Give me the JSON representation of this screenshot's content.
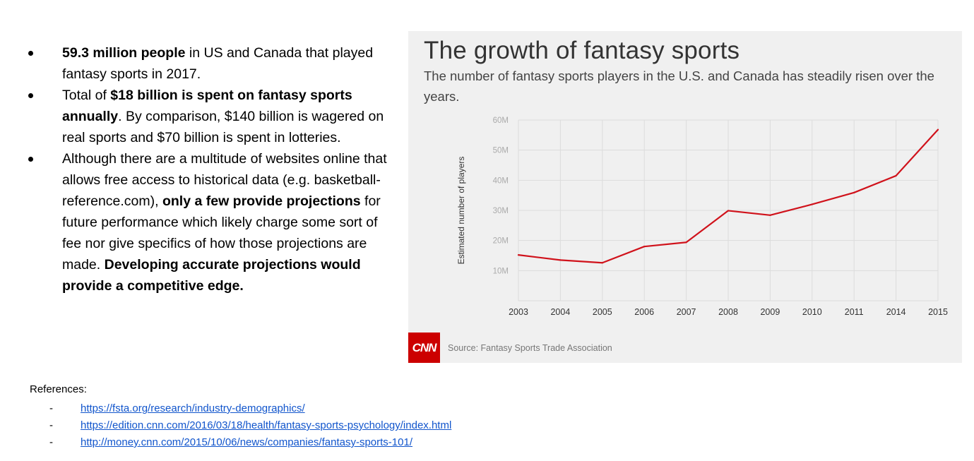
{
  "bullets": [
    {
      "segments": [
        {
          "text": "59.3 million people",
          "bold": true
        },
        {
          "text": " in US and Canada that played fantasy sports in 2017.",
          "bold": false
        }
      ]
    },
    {
      "segments": [
        {
          "text": "Total of ",
          "bold": false
        },
        {
          "text": "$18 billion is spent on fantasy sports annually",
          "bold": true
        },
        {
          "text": ". By comparison, $140 billion is wagered on real sports and $70 billion is spent in lotteries.",
          "bold": false
        }
      ]
    },
    {
      "segments": [
        {
          "text": "Although there are a multitude of websites online that allows free access to historical data (e.g. basketball-reference.com), ",
          "bold": false
        },
        {
          "text": "only a few provide projections",
          "bold": true
        },
        {
          "text": " for future performance which likely charge some sort of fee nor give specifics of how those projections are made. ",
          "bold": false
        },
        {
          "text": "Developing accurate projections would provide a competitive edge.",
          "bold": true
        }
      ]
    }
  ],
  "chart": {
    "logo_text": "CNN",
    "source": "Source: Fantasy Sports Trade Association"
  },
  "chart_data": {
    "type": "line",
    "title": "The growth of fantasy sports",
    "subtitle": "The number of fantasy sports players in the U.S. and Canada has steadily risen over the years.",
    "xlabel": "",
    "ylabel": "Estimated number of players",
    "categories": [
      "2003",
      "2004",
      "2005",
      "2006",
      "2007",
      "2008",
      "2009",
      "2010",
      "2011",
      "2014",
      "2015"
    ],
    "series": [
      {
        "values": [
          15.2,
          13.5,
          12.6,
          18.0,
          19.4,
          29.9,
          28.4,
          32.0,
          35.9,
          41.5,
          56.8
        ],
        "color": "#d0121b"
      }
    ],
    "yticks": [
      10,
      20,
      30,
      40,
      50,
      60
    ],
    "ytick_labels": [
      "10M",
      "20M",
      "30M",
      "40M",
      "50M",
      "60M"
    ],
    "ylim": [
      0,
      60
    ],
    "grid": true,
    "legend": "none"
  },
  "references": {
    "title": "References:",
    "items": [
      "https://fsta.org/research/industry-demographics/",
      "https://edition.cnn.com/2016/03/18/health/fantasy-sports-psychology/index.html",
      "http://money.cnn.com/2015/10/06/news/companies/fantasy-sports-101/"
    ]
  }
}
